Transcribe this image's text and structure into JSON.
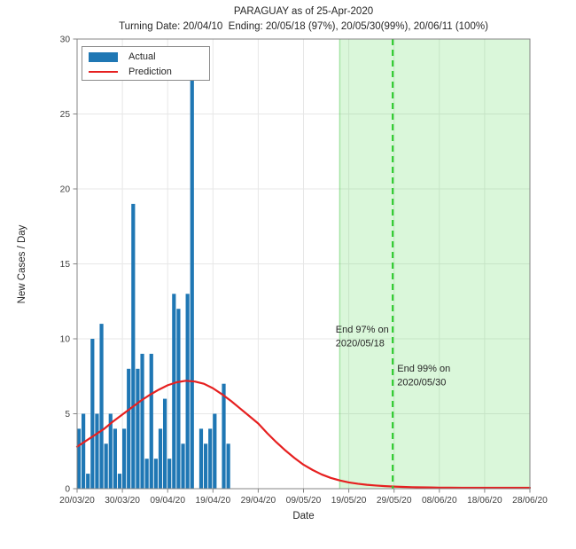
{
  "title": "PARAGUAY as of 25-Apr-2020",
  "subtitle": "Turning Date: 20/04/10  Ending: 20/05/18 (97%), 20/05/30(99%), 20/06/11 (100%)",
  "legend": {
    "items": [
      {
        "label": "Actual",
        "type": "bar",
        "color": "#1f77b4"
      },
      {
        "label": "Prediction",
        "type": "line",
        "color": "#e62020"
      }
    ]
  },
  "chart_data": {
    "type": "bar",
    "title": "PARAGUAY as of 25-Apr-2020",
    "subtitle": "Turning Date: 20/04/10  Ending: 20/05/18 (97%), 20/05/30(99%), 20/06/11 (100%)",
    "xlabel": "Date",
    "ylabel": "New Cases / Day",
    "ylim": [
      0,
      30
    ],
    "y_ticks": [
      0,
      5,
      10,
      15,
      20,
      25,
      30
    ],
    "x_tick_labels": [
      "20/03/20",
      "30/03/20",
      "09/04/20",
      "19/04/20",
      "29/04/20",
      "09/05/20",
      "19/05/20",
      "29/05/20",
      "08/06/20",
      "18/06/20",
      "28/06/20"
    ],
    "x_tick_days": [
      0,
      10,
      20,
      30,
      40,
      50,
      60,
      70,
      80,
      90,
      100
    ],
    "x_span_days": 100,
    "grid": true,
    "actual_bars": {
      "name": "Actual",
      "dates": [
        "20/03/20",
        "21/03/20",
        "22/03/20",
        "23/03/20",
        "24/03/20",
        "25/03/20",
        "26/03/20",
        "27/03/20",
        "28/03/20",
        "29/03/20",
        "30/03/20",
        "31/03/20",
        "01/04/20",
        "02/04/20",
        "03/04/20",
        "04/04/20",
        "05/04/20",
        "06/04/20",
        "07/04/20",
        "08/04/20",
        "09/04/20",
        "10/04/20",
        "11/04/20",
        "12/04/20",
        "13/04/20",
        "14/04/20",
        "15/04/20",
        "16/04/20",
        "17/04/20",
        "18/04/20",
        "19/04/20",
        "20/04/20",
        "21/04/20",
        "22/04/20"
      ],
      "values": [
        4,
        5,
        1,
        10,
        5,
        11,
        3,
        5,
        4,
        1,
        4,
        8,
        19,
        8,
        9,
        2,
        9,
        2,
        4,
        6,
        2,
        13,
        12,
        3,
        13,
        28,
        0,
        4,
        3,
        4,
        5,
        0,
        7,
        3
      ]
    },
    "prediction_curve": {
      "name": "Prediction",
      "points": [
        [
          0,
          2.8
        ],
        [
          2,
          3.2
        ],
        [
          4,
          3.6
        ],
        [
          6,
          4.0
        ],
        [
          8,
          4.5
        ],
        [
          10,
          4.95
        ],
        [
          12,
          5.4
        ],
        [
          14,
          5.85
        ],
        [
          16,
          6.25
        ],
        [
          18,
          6.6
        ],
        [
          20,
          6.9
        ],
        [
          22,
          7.1
        ],
        [
          24,
          7.2
        ],
        [
          26,
          7.15
        ],
        [
          28,
          7.0
        ],
        [
          30,
          6.7
        ],
        [
          32,
          6.3
        ],
        [
          34,
          5.85
        ],
        [
          36,
          5.35
        ],
        [
          38,
          4.85
        ],
        [
          40,
          4.35
        ],
        [
          42,
          3.7
        ],
        [
          44,
          3.1
        ],
        [
          46,
          2.55
        ],
        [
          48,
          2.05
        ],
        [
          50,
          1.6
        ],
        [
          52,
          1.25
        ],
        [
          54,
          0.95
        ],
        [
          56,
          0.72
        ],
        [
          58,
          0.55
        ],
        [
          60,
          0.42
        ],
        [
          62,
          0.33
        ],
        [
          64,
          0.26
        ],
        [
          66,
          0.21
        ],
        [
          68,
          0.17
        ],
        [
          70,
          0.14
        ],
        [
          72,
          0.12
        ],
        [
          74,
          0.1
        ],
        [
          76,
          0.09
        ],
        [
          78,
          0.08
        ],
        [
          80,
          0.07
        ],
        [
          85,
          0.06
        ],
        [
          90,
          0.06
        ],
        [
          95,
          0.06
        ],
        [
          100,
          0.06
        ]
      ]
    },
    "ending_region": {
      "start_date": "20/05/18",
      "start_day": 58,
      "end_day": 100
    },
    "ending_line": {
      "date": "2020/05/30",
      "day": 69.7
    },
    "annotations": [
      {
        "lines": [
          "End 97% on",
          "2020/05/18"
        ],
        "x_day": 57.1,
        "y_value": 10.4
      },
      {
        "lines": [
          "End 99% on",
          "2020/05/30"
        ],
        "x_day": 70.7,
        "y_value": 7.8
      }
    ],
    "colors": {
      "bar": "#1f77b4",
      "prediction": "#e62020",
      "region_fill": "rgba(102,221,102,0.24)",
      "region_edge": "rgba(80,200,80,0.45)",
      "ending_line": "#30cc30",
      "axis": "#858585",
      "grid": "#e7e7e7",
      "text": "#262626",
      "tick_text": "#404040"
    }
  }
}
